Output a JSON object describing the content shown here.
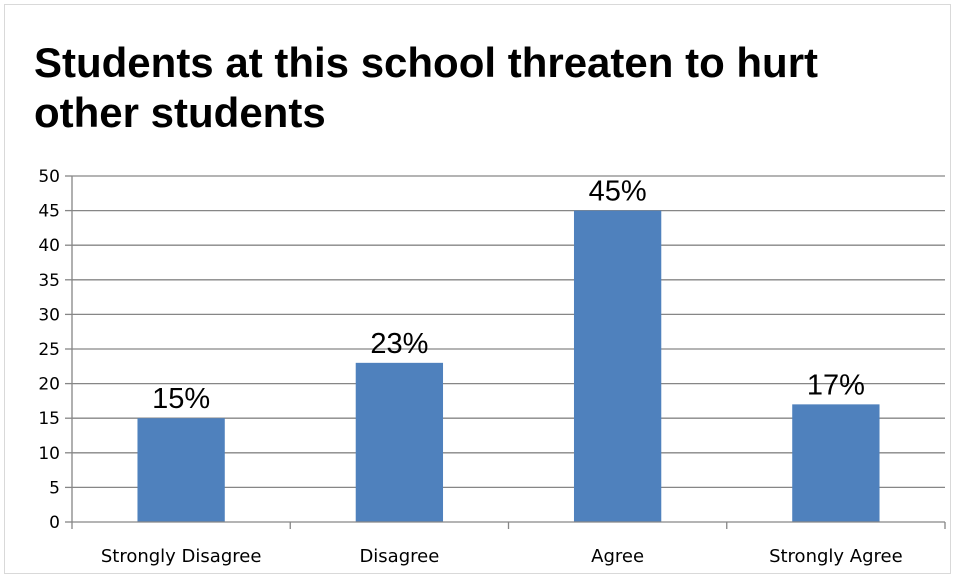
{
  "chart_data": {
    "type": "bar",
    "title": "Students at this school threaten to hurt other students",
    "categories": [
      "Strongly Disagree",
      "Disagree",
      "Agree",
      "Strongly Agree"
    ],
    "values": [
      15,
      23,
      45,
      17
    ],
    "data_labels": [
      "15%",
      "23%",
      "45%",
      "17%"
    ],
    "ylim": [
      0,
      50
    ],
    "yticks": [
      0,
      5,
      10,
      15,
      20,
      25,
      30,
      35,
      40,
      45,
      50
    ],
    "xlabel": "",
    "ylabel": "",
    "grid": true,
    "legend": "none",
    "bar_color": "#4f81bd"
  }
}
